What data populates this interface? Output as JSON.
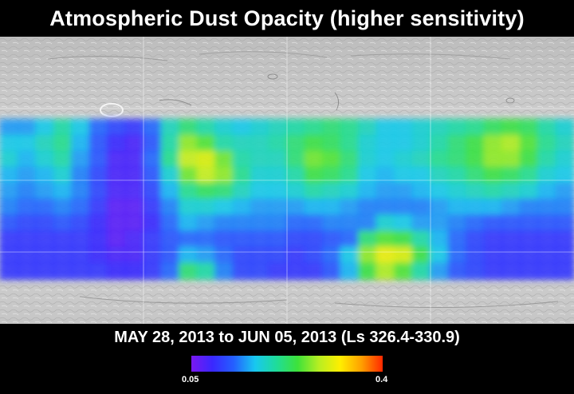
{
  "title": "Atmospheric Dust Opacity (higher sensitivity)",
  "date_range": "MAY 28, 2013 to JUN 05, 2013 (Ls 326.4-330.9)",
  "colorbar": {
    "min_label": "0.05",
    "max_label": "0.4",
    "min": 0.05,
    "max": 0.4,
    "colors": [
      "#7a18f0",
      "#3a28ff",
      "#2460ff",
      "#18c8f0",
      "#1fdc9a",
      "#3ee23a",
      "#b8ee22",
      "#ffee00",
      "#ffa000",
      "#ff2800"
    ]
  },
  "map": {
    "projection": "cylindrical",
    "graticule": "on",
    "data_rows": [
      [
        0.15,
        0.15,
        0.17,
        0.2,
        0.17,
        0.13,
        0.11,
        0.1,
        0.13,
        0.19,
        0.22,
        0.2,
        0.18,
        0.17,
        0.18,
        0.19,
        0.2,
        0.21,
        0.22,
        0.21,
        0.19,
        0.17,
        0.17,
        0.18,
        0.19,
        0.2,
        0.21,
        0.23,
        0.24,
        0.23,
        0.2,
        0.18
      ],
      [
        0.17,
        0.17,
        0.19,
        0.21,
        0.16,
        0.12,
        0.09,
        0.08,
        0.12,
        0.2,
        0.27,
        0.25,
        0.2,
        0.19,
        0.19,
        0.2,
        0.22,
        0.24,
        0.23,
        0.21,
        0.18,
        0.17,
        0.17,
        0.18,
        0.2,
        0.22,
        0.24,
        0.27,
        0.28,
        0.25,
        0.21,
        0.19
      ],
      [
        0.18,
        0.16,
        0.18,
        0.2,
        0.15,
        0.12,
        0.08,
        0.08,
        0.13,
        0.21,
        0.29,
        0.3,
        0.26,
        0.2,
        0.19,
        0.19,
        0.22,
        0.26,
        0.25,
        0.22,
        0.18,
        0.17,
        0.18,
        0.19,
        0.21,
        0.22,
        0.24,
        0.27,
        0.27,
        0.24,
        0.2,
        0.18
      ],
      [
        0.16,
        0.15,
        0.16,
        0.18,
        0.14,
        0.11,
        0.08,
        0.08,
        0.12,
        0.18,
        0.26,
        0.29,
        0.27,
        0.21,
        0.18,
        0.18,
        0.2,
        0.24,
        0.23,
        0.21,
        0.17,
        0.16,
        0.17,
        0.17,
        0.19,
        0.2,
        0.22,
        0.24,
        0.23,
        0.21,
        0.18,
        0.17
      ],
      [
        0.15,
        0.14,
        0.15,
        0.16,
        0.14,
        0.11,
        0.08,
        0.08,
        0.11,
        0.16,
        0.21,
        0.23,
        0.22,
        0.19,
        0.17,
        0.17,
        0.18,
        0.2,
        0.19,
        0.18,
        0.16,
        0.15,
        0.15,
        0.16,
        0.17,
        0.18,
        0.19,
        0.2,
        0.19,
        0.18,
        0.16,
        0.15
      ],
      [
        0.14,
        0.13,
        0.13,
        0.14,
        0.13,
        0.1,
        0.07,
        0.07,
        0.1,
        0.14,
        0.18,
        0.18,
        0.17,
        0.16,
        0.15,
        0.15,
        0.15,
        0.16,
        0.16,
        0.15,
        0.14,
        0.14,
        0.14,
        0.14,
        0.15,
        0.16,
        0.16,
        0.16,
        0.15,
        0.14,
        0.14,
        0.14
      ],
      [
        0.12,
        0.11,
        0.11,
        0.12,
        0.11,
        0.09,
        0.07,
        0.07,
        0.09,
        0.13,
        0.16,
        0.15,
        0.14,
        0.14,
        0.14,
        0.14,
        0.13,
        0.13,
        0.14,
        0.14,
        0.14,
        0.18,
        0.17,
        0.15,
        0.15,
        0.14,
        0.13,
        0.12,
        0.12,
        0.12,
        0.12,
        0.12
      ],
      [
        0.1,
        0.1,
        0.1,
        0.1,
        0.1,
        0.09,
        0.07,
        0.08,
        0.1,
        0.12,
        0.13,
        0.13,
        0.12,
        0.12,
        0.12,
        0.12,
        0.11,
        0.11,
        0.12,
        0.13,
        0.22,
        0.25,
        0.24,
        0.2,
        0.16,
        0.13,
        0.11,
        0.1,
        0.1,
        0.1,
        0.1,
        0.1
      ],
      [
        0.1,
        0.1,
        0.1,
        0.1,
        0.1,
        0.09,
        0.08,
        0.08,
        0.1,
        0.12,
        0.16,
        0.15,
        0.13,
        0.11,
        0.11,
        0.11,
        0.1,
        0.11,
        0.13,
        0.17,
        0.27,
        0.31,
        0.3,
        0.24,
        0.17,
        0.13,
        0.11,
        0.1,
        0.1,
        0.1,
        0.1,
        0.1
      ],
      [
        0.1,
        0.1,
        0.1,
        0.1,
        0.1,
        0.1,
        0.09,
        0.09,
        0.1,
        0.13,
        0.22,
        0.2,
        0.14,
        0.11,
        0.11,
        0.1,
        0.1,
        0.1,
        0.12,
        0.16,
        0.24,
        0.28,
        0.25,
        0.2,
        0.15,
        0.12,
        0.11,
        0.1,
        0.1,
        0.1,
        0.1,
        0.1
      ]
    ]
  }
}
